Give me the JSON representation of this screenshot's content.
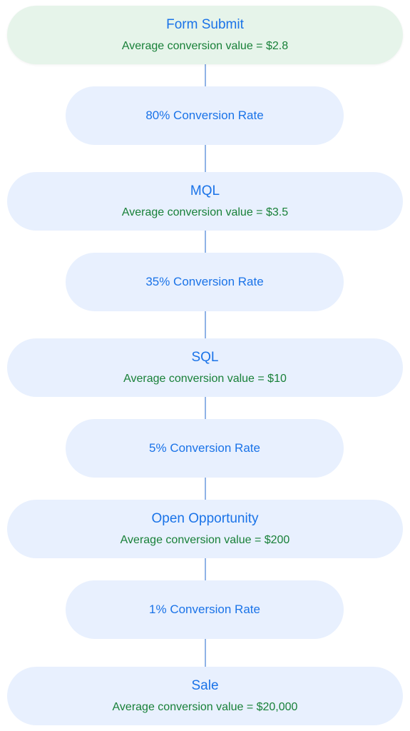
{
  "funnel": {
    "stages": [
      {
        "title": "Form Submit",
        "value": "Average conversion value = $2.8"
      },
      {
        "title": "MQL",
        "value": "Average conversion value = $3.5"
      },
      {
        "title": "SQL",
        "value": "Average conversion value = $10"
      },
      {
        "title": "Open Opportunity",
        "value": "Average conversion value = $200"
      },
      {
        "title": "Sale",
        "value": "Average conversion value = $20,000"
      }
    ],
    "rates": [
      {
        "label": "80% Conversion Rate"
      },
      {
        "label": "35% Conversion Rate"
      },
      {
        "label": "5% Conversion Rate"
      },
      {
        "label": "1% Conversion Rate"
      }
    ]
  },
  "colors": {
    "stage_bg": "#e8f0fe",
    "first_stage_bg": "#e6f4ea",
    "title": "#1a73e8",
    "value": "#188038",
    "connector": "#8fb2e6"
  }
}
